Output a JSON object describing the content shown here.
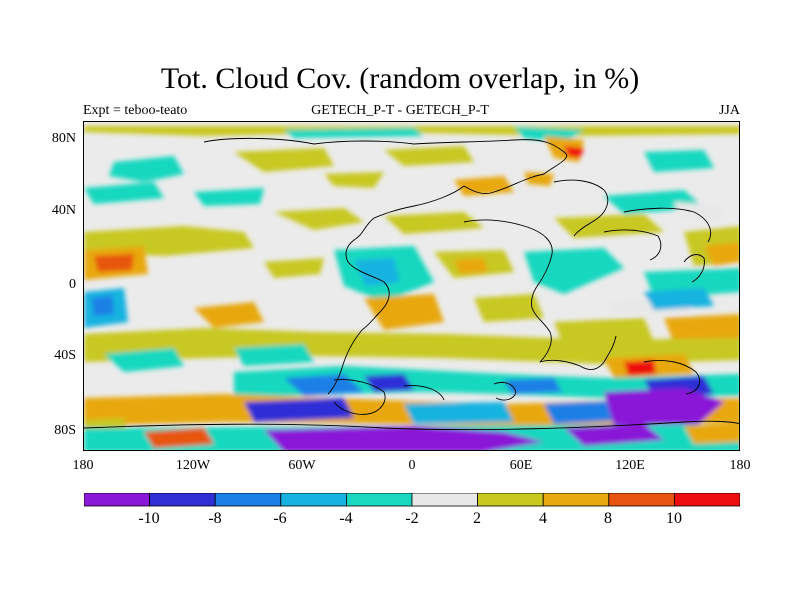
{
  "title": "Tot. Cloud Cov. (random overlap, in %)",
  "subtitle_left": "Expt = teboo-teato",
  "subtitle_center": "GETECH_P-T - GETECH_P-T",
  "subtitle_right": "JJA",
  "y_ticks": [
    "80N",
    "40N",
    "0",
    "40S",
    "80S"
  ],
  "x_ticks": [
    "180",
    "120W",
    "60W",
    "0",
    "60E",
    "120E",
    "180"
  ],
  "colorbar": {
    "colors": [
      "#8a18d8",
      "#2f2fd6",
      "#1a7fe6",
      "#18b2e0",
      "#19d8bf",
      "#e8e8e8",
      "#c8c820",
      "#e8a810",
      "#e85410",
      "#ee1010"
    ],
    "labels": [
      "-10",
      "-8",
      "-6",
      "-4",
      "-2",
      "2",
      "4",
      "8",
      "10"
    ]
  }
}
